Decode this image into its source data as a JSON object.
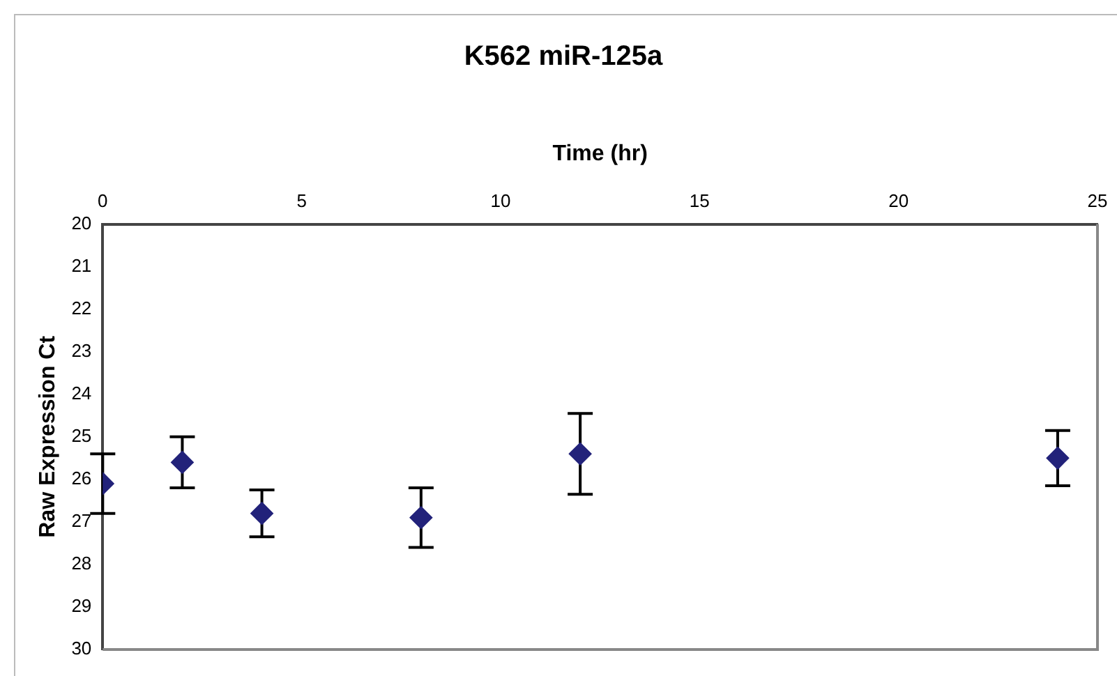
{
  "chart_data": {
    "type": "scatter",
    "title": "K562 miR-125a",
    "xlabel": "Time (hr)",
    "ylabel": "Raw Expression Ct",
    "x": [
      0,
      2,
      4,
      8,
      12,
      24
    ],
    "series": [
      {
        "color": "#22227a",
        "values": [
          26.1,
          25.6,
          26.8,
          26.9,
          25.4,
          25.5
        ],
        "errors": [
          0.7,
          0.6,
          0.55,
          0.7,
          0.95,
          0.65
        ]
      }
    ],
    "xlim": [
      0,
      25
    ],
    "xticks": [
      0,
      5,
      10,
      15,
      20,
      25
    ],
    "ylim": [
      30,
      20
    ],
    "yticks": [
      20,
      21,
      22,
      23,
      24,
      25,
      26,
      27,
      28,
      29,
      30
    ],
    "grid": false,
    "legend": false,
    "marker": "diamond"
  }
}
